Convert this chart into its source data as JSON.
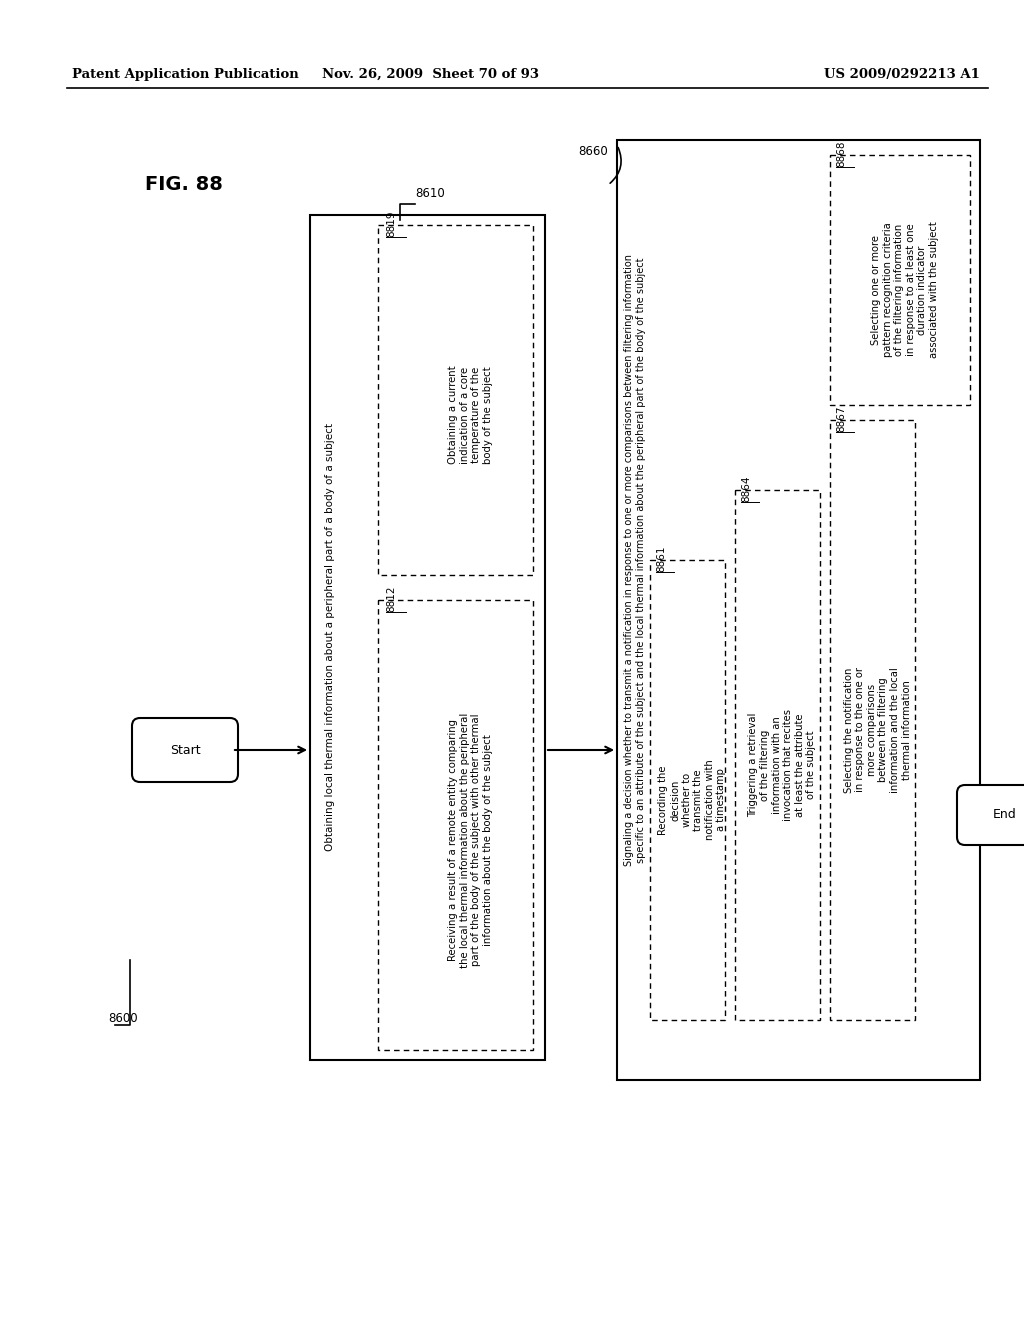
{
  "header_left": "Patent Application Publication",
  "header_center": "Nov. 26, 2009  Sheet 70 of 93",
  "header_right": "US 2009/0292213 A1",
  "fig_label": "FIG. 88",
  "background_color": "#ffffff",
  "start_text": "Start",
  "end_text": "End",
  "label_8600": "8600",
  "label_8610": "8610",
  "label_8660": "8660",
  "label_8819": "8819",
  "label_8812": "8812",
  "label_8861": "8861",
  "label_8864": "8864",
  "label_8867": "8867",
  "label_8868": "8868",
  "text_8610_outer": "Obtaining local thermal information about a peripheral part of a body of a subject",
  "text_8819": "Obtaining a current\nindication of a core\ntemperature of the\nbody of the subject",
  "text_8812": "Receiving a result of a remote entity comparing\nthe local thermal information about the peripheral\npart of the body of the subject with other thermal\ninformation about the body of the subject",
  "text_8660_outer_line1": "Signaling a decision whether to transmit a notification in response to one or more comparisons between filtering information",
  "text_8660_outer_line2": "specific to an attribute of the subject and the local thermal information about the peripheral part of the body of the subject",
  "text_8861": "Recording the\ndecision\nwhether to\ntransmit the\nnotification with\na timestamp",
  "text_8864": "Triggering a retrieval\nof the filtering\ninformation with an\ninvocation that recites\nat least the attribute\nof the subject",
  "text_8867": "Selecting the notification\nin response to the one or\nmore comparisons\nbetween the filtering\ninformation and the local\nthermal information",
  "text_8868": "Selecting one or more\npattern recognition criteria\nof the filtering information\nin response to at least one\nduration indicator\nassociated with the subject"
}
